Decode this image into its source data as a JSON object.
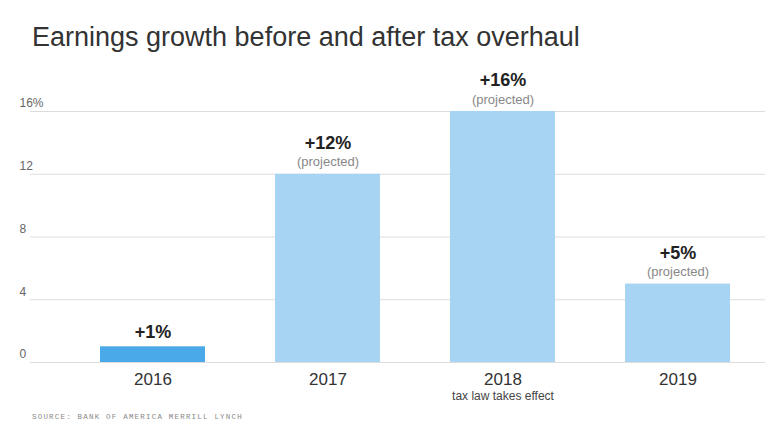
{
  "chart_data": {
    "type": "bar",
    "title": "Earnings growth before and after tax overhaul",
    "source": "SOURCE: BANK OF AMERICA MERRILL LYNCH",
    "categories": [
      "2016",
      "2017",
      "2018",
      "2019"
    ],
    "values": [
      1,
      12,
      16,
      5
    ],
    "value_labels": [
      "+1%",
      "+12%",
      "+16%",
      "+5%"
    ],
    "data_labels": true,
    "colors": [
      "#4aa9e9",
      "#a7d4f2",
      "#a7d4f2",
      "#a7d4f2"
    ],
    "ylim": [
      0,
      16
    ],
    "yticks": [
      0,
      4,
      8,
      12,
      {
        "value": 16,
        "label": "16%"
      }
    ],
    "grid": true,
    "annotations": [
      {
        "category": "2017",
        "text": "(projected)",
        "anchor": "bar"
      },
      {
        "category": "2018",
        "text": "(projected)",
        "anchor": "bar"
      },
      {
        "category": "2019",
        "text": "(projected)",
        "anchor": "bar"
      },
      {
        "category": "2018",
        "text": "tax law takes effect",
        "anchor": "axis"
      }
    ]
  }
}
